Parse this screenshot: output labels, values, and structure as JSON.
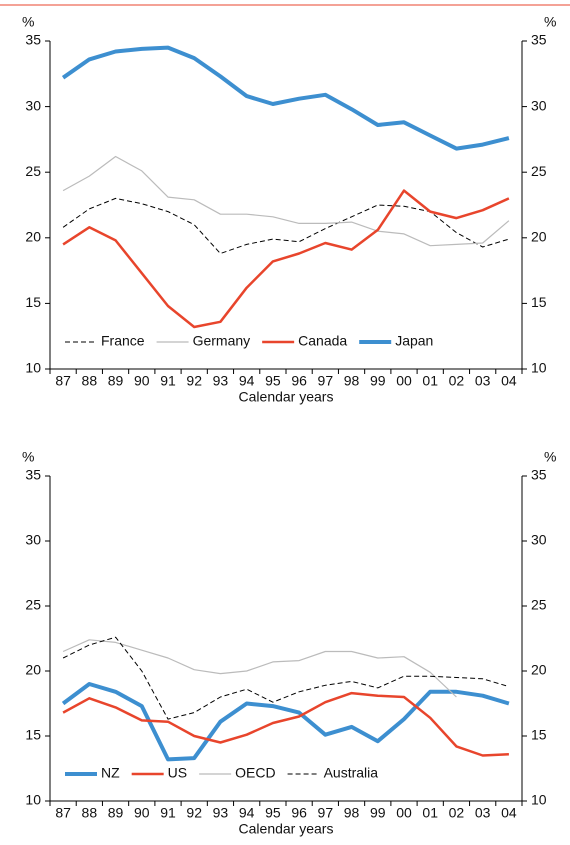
{
  "chart_data": [
    {
      "type": "line",
      "y_unit": "%",
      "x_label": "Calendar years",
      "categories": [
        "87",
        "88",
        "89",
        "90",
        "91",
        "92",
        "93",
        "94",
        "95",
        "96",
        "97",
        "98",
        "99",
        "00",
        "01",
        "02",
        "03",
        "04"
      ],
      "ylim": [
        10,
        35
      ],
      "yticks": [
        10,
        15,
        20,
        25,
        30,
        35
      ],
      "legend": "bottom",
      "series": [
        {
          "name": "France",
          "color": "#000000",
          "line_style": "dashed",
          "line_width": 1,
          "values": [
            20.8,
            22.2,
            23.0,
            22.6,
            22.0,
            21.0,
            18.8,
            19.5,
            19.9,
            19.7,
            20.7,
            21.6,
            22.5,
            22.4,
            22.0,
            20.4,
            19.3,
            19.9
          ]
        },
        {
          "name": "Germany",
          "color": "#bbbbbb",
          "line_style": "solid",
          "line_width": 1.2,
          "values": [
            23.6,
            24.7,
            26.2,
            25.1,
            23.1,
            22.9,
            21.8,
            21.8,
            21.6,
            21.1,
            21.1,
            21.2,
            20.5,
            20.3,
            19.4,
            19.5,
            19.6,
            21.3
          ]
        },
        {
          "name": "Canada",
          "color": "#e8452c",
          "line_style": "solid",
          "line_width": 2.5,
          "values": [
            19.5,
            20.8,
            19.8,
            17.3,
            14.8,
            13.2,
            13.6,
            16.2,
            18.2,
            18.8,
            19.6,
            19.1,
            20.6,
            23.6,
            22.0,
            21.5,
            22.1,
            23.0
          ]
        },
        {
          "name": "Japan",
          "color": "#3d8fd0",
          "line_style": "solid",
          "line_width": 4,
          "values": [
            32.2,
            33.6,
            34.2,
            34.4,
            34.5,
            33.7,
            32.3,
            30.8,
            30.2,
            30.6,
            30.9,
            29.8,
            28.6,
            28.8,
            27.8,
            26.8,
            27.1,
            27.6
          ]
        }
      ]
    },
    {
      "type": "line",
      "y_unit": "%",
      "x_label": "Calendar years",
      "categories": [
        "87",
        "88",
        "89",
        "90",
        "91",
        "92",
        "93",
        "94",
        "95",
        "96",
        "97",
        "98",
        "99",
        "00",
        "01",
        "02",
        "03",
        "04"
      ],
      "ylim": [
        10,
        35
      ],
      "yticks": [
        10,
        15,
        20,
        25,
        30,
        35
      ],
      "legend": "bottom",
      "series": [
        {
          "name": "NZ",
          "color": "#3d8fd0",
          "line_style": "solid",
          "line_width": 4,
          "values": [
            17.5,
            19.0,
            18.4,
            17.3,
            13.2,
            13.3,
            16.1,
            17.5,
            17.3,
            16.8,
            15.1,
            15.7,
            14.6,
            16.3,
            18.4,
            18.4,
            18.1,
            17.5
          ]
        },
        {
          "name": "US",
          "color": "#e8452c",
          "line_style": "solid",
          "line_width": 2.5,
          "values": [
            16.8,
            17.9,
            17.2,
            16.2,
            16.1,
            15.0,
            14.5,
            15.1,
            16.0,
            16.5,
            17.6,
            18.3,
            18.1,
            18.0,
            16.4,
            14.2,
            13.5,
            13.6
          ]
        },
        {
          "name": "OECD",
          "color": "#bbbbbb",
          "line_style": "solid",
          "line_width": 1.2,
          "values": [
            21.5,
            22.4,
            22.2,
            21.6,
            21.0,
            20.1,
            19.8,
            20.0,
            20.7,
            20.8,
            21.5,
            21.5,
            21.0,
            21.1,
            19.9,
            18.0,
            null,
            null
          ]
        },
        {
          "name": "Australia",
          "color": "#000000",
          "line_style": "dashed",
          "line_width": 1,
          "values": [
            21.0,
            22.0,
            22.6,
            20.0,
            16.3,
            16.8,
            18.0,
            18.6,
            17.6,
            18.4,
            18.9,
            19.2,
            18.7,
            19.6,
            19.6,
            19.5,
            19.4,
            18.8
          ]
        }
      ]
    }
  ]
}
